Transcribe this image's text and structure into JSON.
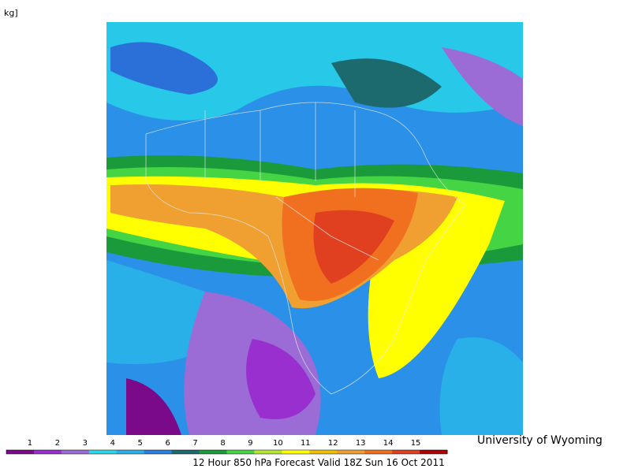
{
  "header": {
    "unit_fragment": "kg]"
  },
  "credit": "University of Wyoming",
  "caption": "12 Hour 850 hPa Forecast Valid 18Z Sun 16 Oct 2011",
  "legend": {
    "ticks": [
      1,
      2,
      3,
      4,
      5,
      6,
      7,
      8,
      9,
      10,
      11,
      12,
      13,
      14,
      15
    ],
    "colors": [
      "#7a0a8a",
      "#9a2fd0",
      "#9b6cd6",
      "#28d8e8",
      "#2ab0e8",
      "#2a80e0",
      "#1d6a6e",
      "#1a9a3a",
      "#44d444",
      "#b4e830",
      "#ffff00",
      "#f0c000",
      "#f0a030",
      "#f07020",
      "#e04020",
      "#b00000"
    ]
  }
}
